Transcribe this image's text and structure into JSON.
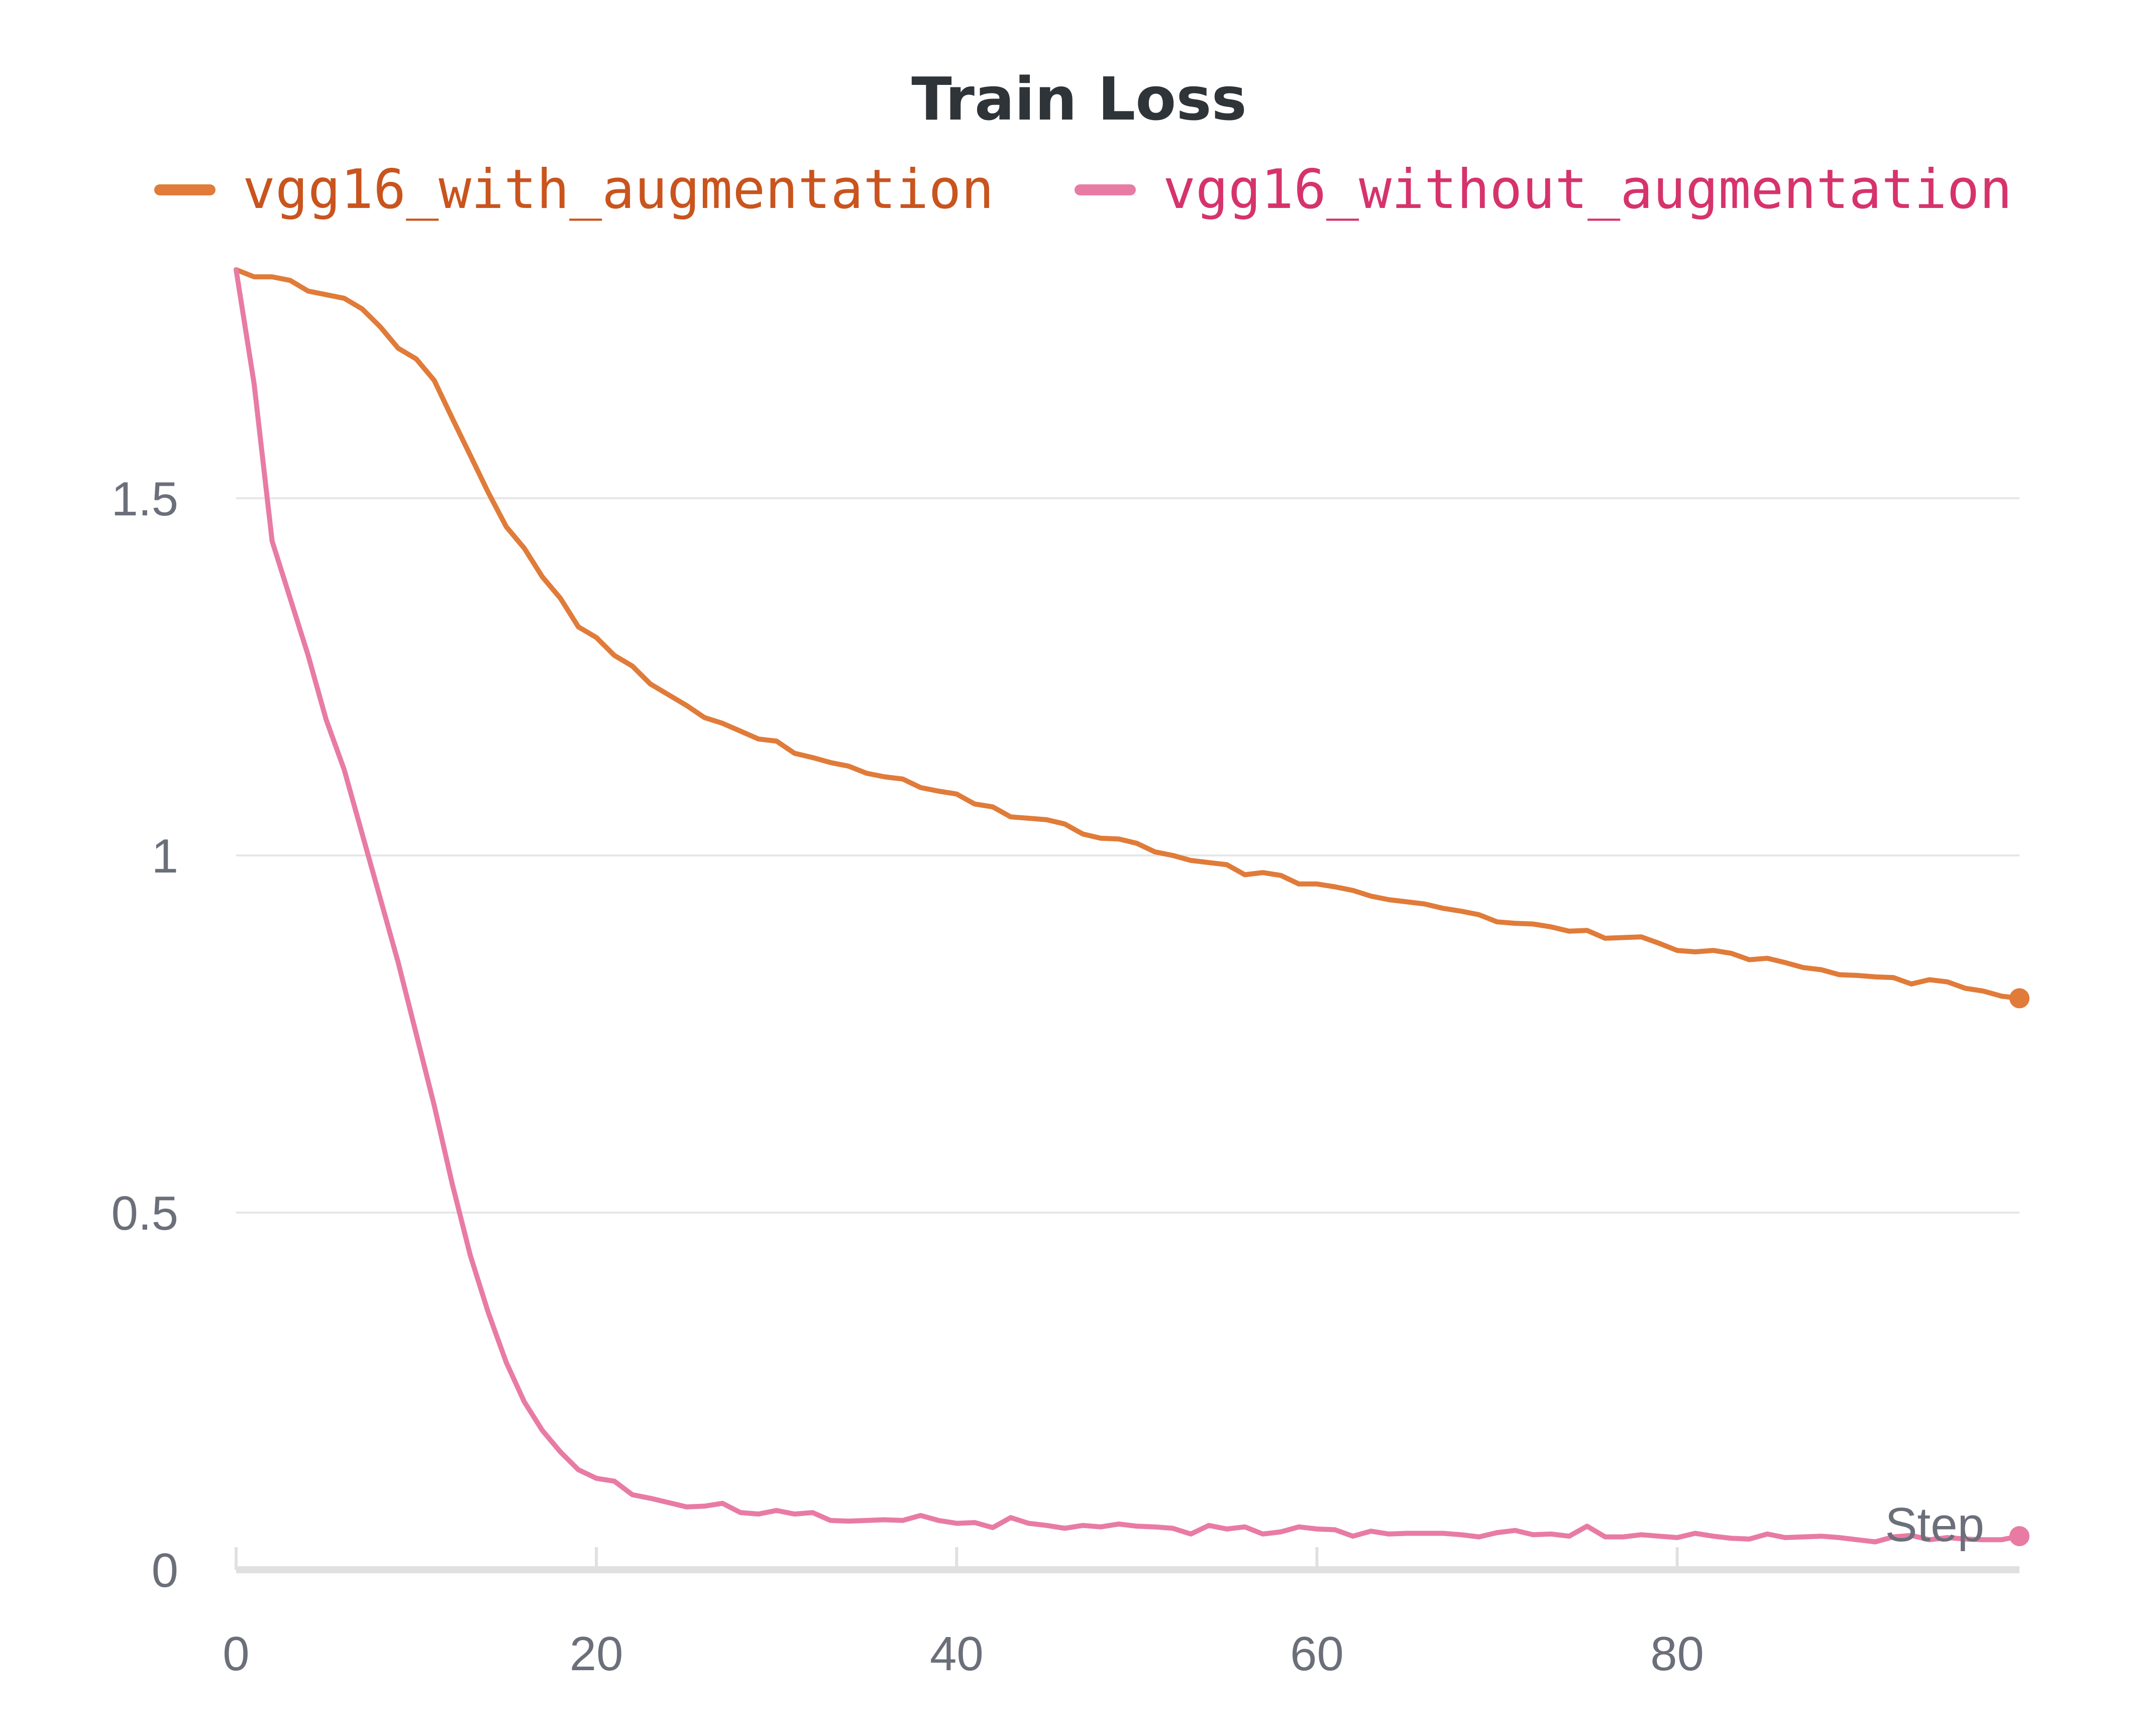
{
  "chart_data": {
    "type": "line",
    "title": "Train Loss",
    "xlabel": "Step",
    "ylabel": "",
    "xlim": [
      0,
      99
    ],
    "ylim": [
      0,
      1.86
    ],
    "x_ticks": [
      0,
      20,
      40,
      60,
      80
    ],
    "y_ticks": [
      0,
      0.5,
      1,
      1.5
    ],
    "y_tick_labels": [
      "0",
      "0.5",
      "1",
      "1.5"
    ],
    "grid": "horizontal",
    "legend_position": "top",
    "x": [
      0,
      1,
      2,
      3,
      4,
      5,
      6,
      7,
      8,
      9,
      10,
      11,
      12,
      13,
      14,
      15,
      16,
      17,
      18,
      19,
      20,
      21,
      22,
      23,
      24,
      25,
      26,
      27,
      28,
      29,
      30,
      31,
      32,
      33,
      34,
      35,
      36,
      37,
      38,
      39,
      40,
      41,
      42,
      43,
      44,
      45,
      46,
      47,
      48,
      49,
      50,
      51,
      52,
      53,
      54,
      55,
      56,
      57,
      58,
      59,
      60,
      61,
      62,
      63,
      64,
      65,
      66,
      67,
      68,
      69,
      70,
      71,
      72,
      73,
      74,
      75,
      76,
      77,
      78,
      79,
      80,
      81,
      82,
      83,
      84,
      85,
      86,
      87,
      88,
      89,
      90,
      91,
      92,
      93,
      94,
      95,
      96,
      97,
      98,
      99
    ],
    "series": [
      {
        "name": "vgg16_with_augmentation",
        "color": "#e07b39",
        "values": [
          1.82,
          1.81,
          1.81,
          1.805,
          1.79,
          1.785,
          1.78,
          1.765,
          1.74,
          1.71,
          1.695,
          1.665,
          1.612,
          1.56,
          1.508,
          1.46,
          1.43,
          1.39,
          1.36,
          1.32,
          1.305,
          1.28,
          1.265,
          1.24,
          1.225,
          1.21,
          1.193,
          1.185,
          1.174,
          1.163,
          1.16,
          1.143,
          1.137,
          1.13,
          1.125,
          1.115,
          1.11,
          1.107,
          1.095,
          1.09,
          1.086,
          1.072,
          1.068,
          1.054,
          1.052,
          1.05,
          1.044,
          1.03,
          1.024,
          1.023,
          1.017,
          1.005,
          1.0,
          0.993,
          0.99,
          0.987,
          0.973,
          0.976,
          0.972,
          0.96,
          0.96,
          0.956,
          0.951,
          0.943,
          0.938,
          0.935,
          0.932,
          0.926,
          0.922,
          0.917,
          0.907,
          0.905,
          0.904,
          0.9,
          0.894,
          0.895,
          0.884,
          0.885,
          0.886,
          0.877,
          0.867,
          0.865,
          0.867,
          0.863,
          0.854,
          0.856,
          0.85,
          0.843,
          0.84,
          0.833,
          0.832,
          0.83,
          0.829,
          0.82,
          0.826,
          0.823,
          0.814,
          0.81,
          0.803,
          0.8
        ]
      },
      {
        "name": "vgg16_without_augmentation",
        "color": "#e87ba4",
        "values": [
          1.82,
          1.66,
          1.44,
          1.36,
          1.28,
          1.19,
          1.12,
          1.03,
          0.94,
          0.85,
          0.75,
          0.65,
          0.54,
          0.44,
          0.36,
          0.29,
          0.235,
          0.195,
          0.165,
          0.14,
          0.128,
          0.124,
          0.105,
          0.1,
          0.094,
          0.088,
          0.089,
          0.093,
          0.08,
          0.078,
          0.083,
          0.078,
          0.08,
          0.069,
          0.068,
          0.069,
          0.07,
          0.069,
          0.076,
          0.069,
          0.065,
          0.066,
          0.059,
          0.073,
          0.065,
          0.062,
          0.058,
          0.062,
          0.06,
          0.064,
          0.061,
          0.06,
          0.058,
          0.05,
          0.062,
          0.057,
          0.06,
          0.05,
          0.053,
          0.06,
          0.057,
          0.056,
          0.047,
          0.054,
          0.05,
          0.051,
          0.051,
          0.051,
          0.049,
          0.046,
          0.052,
          0.055,
          0.049,
          0.05,
          0.047,
          0.061,
          0.046,
          0.046,
          0.049,
          0.047,
          0.045,
          0.051,
          0.047,
          0.044,
          0.043,
          0.05,
          0.045,
          0.046,
          0.047,
          0.045,
          0.042,
          0.039,
          0.046,
          0.048,
          0.042,
          0.045,
          0.043,
          0.042,
          0.042,
          0.047
        ]
      }
    ]
  }
}
